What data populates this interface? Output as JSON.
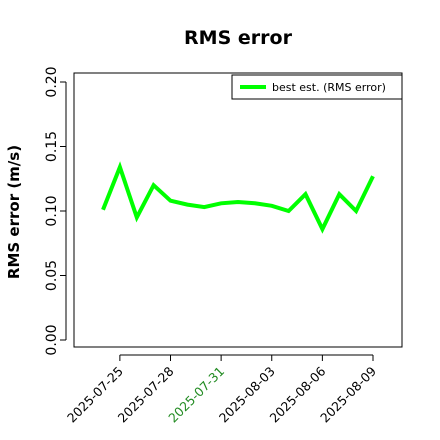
{
  "chart_data": {
    "type": "line",
    "title": "RMS error",
    "ylabel": "RMS error (m/s)",
    "xlabel": "",
    "ylim": [
      0,
      0.2
    ],
    "yticks": [
      0.0,
      0.05,
      0.1,
      0.15,
      0.2
    ],
    "ytick_labels": [
      "0.00",
      "0.05",
      "0.10",
      "0.15",
      "0.20"
    ],
    "x_ticks": [
      "2025-07-25",
      "2025-07-28",
      "2025-07-31",
      "2025-08-03",
      "2025-08-06",
      "2025-08-09"
    ],
    "x_tick_colors": [
      "#000000",
      "#000000",
      "#228B22",
      "#000000",
      "#000000",
      "#000000"
    ],
    "x": [
      "2025-07-24",
      "2025-07-25",
      "2025-07-26",
      "2025-07-27",
      "2025-07-28",
      "2025-07-29",
      "2025-07-30",
      "2025-07-31",
      "2025-08-01",
      "2025-08-02",
      "2025-08-03",
      "2025-08-04",
      "2025-08-05",
      "2025-08-06",
      "2025-08-07",
      "2025-08-08",
      "2025-08-09"
    ],
    "series": [
      {
        "name": "best est. (RMS error)",
        "color": "#00ff00",
        "values": [
          0.101,
          0.134,
          0.095,
          0.12,
          0.108,
          0.105,
          0.103,
          0.106,
          0.107,
          0.106,
          0.104,
          0.1,
          0.113,
          0.086,
          0.113,
          0.1,
          0.127
        ]
      }
    ],
    "legend_position": "top-right",
    "grid": false
  }
}
